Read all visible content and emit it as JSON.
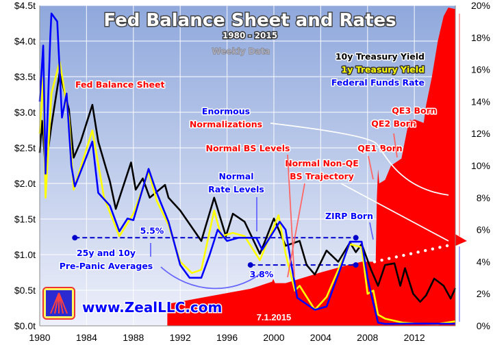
{
  "chart_data": {
    "type": "line",
    "title": "Fed Balance Sheet and Rates",
    "subtitle": "1980 - 2015",
    "note": "Weekly Data",
    "watermark": "www.ZealLLC.com",
    "date_label": "7.1.2015",
    "xlim": [
      1980,
      2015.5
    ],
    "x_ticks": [
      "1980",
      "1984",
      "1988",
      "1992",
      "1996",
      "2000",
      "2004",
      "2008",
      "2012"
    ],
    "y_left": {
      "lim": [
        0,
        4.5
      ],
      "ticks": [
        "$0.0t",
        "$0.5t",
        "$1.0t",
        "$1.5t",
        "$2.0t",
        "$2.5t",
        "$3.0t",
        "$3.5t",
        "$4.0t",
        "$4.5t"
      ]
    },
    "y_right": {
      "lim": [
        0,
        20
      ],
      "ticks": [
        "0%",
        "2%",
        "4%",
        "6%",
        "8%",
        "10%",
        "12%",
        "14%",
        "16%",
        "18%",
        "20%"
      ]
    },
    "grid": true,
    "colors": {
      "balance_sheet": "#ff0000",
      "ten_year": "#000000",
      "one_year": "#ffff00",
      "fed_funds": "#0000ff",
      "background_top": "#8fa8dc",
      "background_bottom": "#e8ecf8"
    },
    "series": [
      {
        "name": "Fed Balance Sheet",
        "axis": "left",
        "type": "area",
        "color": "#ff0000",
        "x": [
          1990.9,
          1991,
          1994,
          1998,
          1999.85,
          1999.95,
          2000.1,
          2001,
          2004,
          2006,
          2007.5,
          2008.7,
          2008.8,
          2008.9,
          2009.0,
          2009.5,
          2010.0,
          2010.9,
          2011.5,
          2012,
          2012.8,
          2013,
          2013.5,
          2014,
          2014.5,
          2014.9,
          2015.5
        ],
        "y": [
          0.3,
          0.31,
          0.4,
          0.52,
          0.62,
          0.66,
          0.6,
          0.6,
          0.75,
          0.84,
          0.9,
          0.9,
          1.8,
          2.2,
          2.0,
          2.05,
          2.25,
          2.35,
          2.85,
          2.9,
          2.85,
          3.1,
          3.5,
          4.0,
          4.35,
          4.47,
          4.45
        ]
      },
      {
        "name": "10y Treasury Yield",
        "axis": "right",
        "color": "#000000",
        "x": [
          1980,
          1980.2,
          1980.5,
          1981,
          1981.7,
          1982.5,
          1982.9,
          1983.5,
          1984.5,
          1985,
          1986,
          1986.5,
          1987.8,
          1988.2,
          1988.8,
          1989.4,
          1990.7,
          1991,
          1992,
          1993.8,
          1994.9,
          1995.9,
          1996.5,
          1997.5,
          1998.8,
          1999.2,
          2000,
          2001,
          2002.2,
          2002.8,
          2003.5,
          2004.5,
          2005.5,
          2006.5,
          2007,
          2007.5,
          2008.3,
          2008.9,
          2009.5,
          2010.3,
          2010.8,
          2011.2,
          2011.9,
          2012.5,
          2013,
          2013.7,
          2014.5,
          2015.1,
          2015.5
        ],
        "y": [
          10.8,
          12.8,
          9.8,
          12.5,
          15.8,
          13.5,
          10.5,
          11.5,
          13.8,
          11.5,
          9,
          7.3,
          10.2,
          8.5,
          9.2,
          8.0,
          8.8,
          8.0,
          7.2,
          5.3,
          8.0,
          5.6,
          7.0,
          6.5,
          4.5,
          5.2,
          6.7,
          5.0,
          5.3,
          3.8,
          3.2,
          4.7,
          4.0,
          5.2,
          4.6,
          5.1,
          3.5,
          2.5,
          3.8,
          3.9,
          2.5,
          3.6,
          2.0,
          1.5,
          1.9,
          2.95,
          2.5,
          1.7,
          2.35
        ]
      },
      {
        "name": "1y Treasury Yield",
        "axis": "right",
        "color": "#ffff00",
        "x": [
          1980,
          1980.3,
          1980.5,
          1981,
          1981.7,
          1982.5,
          1982.9,
          1984.5,
          1985.5,
          1986.8,
          1988,
          1989.3,
          1990,
          1991,
          1992,
          1993,
          1993.8,
          1994.9,
          1995.5,
          1996.5,
          1997.5,
          1998.8,
          2000.4,
          2001,
          2001.8,
          2002.2,
          2003.5,
          2004.5,
          2005.5,
          2006.5,
          2007.5,
          2008,
          2008.5,
          2008.9,
          2009.5,
          2011,
          2012,
          2014,
          2015.5
        ],
        "y": [
          12,
          15.5,
          8,
          14.5,
          16.5,
          13,
          8.5,
          12.2,
          8,
          5.6,
          7,
          9.6,
          7.8,
          6.3,
          4.0,
          3.3,
          3.5,
          7.2,
          5.6,
          5.8,
          5.6,
          4.1,
          6.9,
          4.5,
          2.2,
          2.5,
          1.0,
          1.8,
          3.5,
          5.1,
          4.9,
          2.0,
          2.2,
          0.7,
          0.45,
          0.2,
          0.15,
          0.12,
          0.28
        ]
      },
      {
        "name": "Federal Funds Rate",
        "axis": "right",
        "color": "#0000ff",
        "x": [
          1980,
          1980.3,
          1980.5,
          1980.9,
          1981,
          1981.5,
          1981.9,
          1982.3,
          1982.7,
          1983,
          1984.5,
          1985,
          1986,
          1986.8,
          1987.5,
          1988,
          1989.3,
          1990,
          1991,
          1992,
          1992.8,
          1993.8,
          1994.5,
          1995.2,
          1996,
          1997,
          1998.5,
          1999,
          2000.5,
          2001,
          2001.5,
          2002,
          2003.5,
          2004.5,
          2005.5,
          2006.5,
          2007.5,
          2008,
          2008.3,
          2008.9,
          2009.5,
          2012,
          2015.5
        ],
        "y": [
          14,
          17.5,
          9.5,
          18,
          19.5,
          19,
          13,
          14.5,
          10,
          8.7,
          11.5,
          8.3,
          7.5,
          5.9,
          6.7,
          6.6,
          9.8,
          8.3,
          6.5,
          3.8,
          3.0,
          3.0,
          4.4,
          6,
          5.3,
          5.5,
          5.5,
          4.75,
          6.5,
          6,
          3.8,
          1.75,
          1.0,
          1.2,
          3.2,
          5.25,
          5.25,
          3,
          2,
          0.2,
          0.12,
          0.14,
          0.13
        ]
      }
    ],
    "reference_lines": [
      {
        "label": "5.5%",
        "value": 5.5,
        "x": [
          1983,
          2007
        ]
      },
      {
        "label": "3.8%",
        "value": 3.8,
        "x": [
          1998,
          2007
        ]
      }
    ],
    "annotations": [
      "Fed Balance Sheet",
      "Enormous",
      "Normalizations",
      "Normal BS Levels",
      "Normal Non-QE",
      "BS Trajectory",
      "QE1 Born",
      "QE2 Born",
      "QE3 Born",
      "Normal",
      "Rate Levels",
      "ZIRP Born",
      "25y and 10y",
      "Pre-Panic Averages"
    ]
  }
}
